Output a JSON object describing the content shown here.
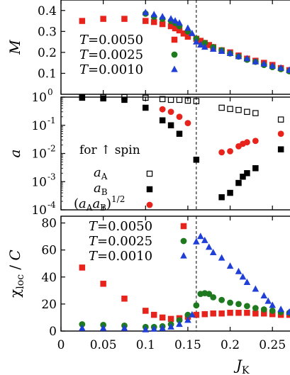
{
  "chart_data": [
    {
      "type": "scatter",
      "panel": "top",
      "ylabel": "M",
      "xlim": [
        0,
        0.28
      ],
      "ylim": [
        0,
        0.45
      ],
      "yticks": [
        {
          "value": 0.1,
          "label": "0.1"
        },
        {
          "value": 0.2,
          "label": "0.2"
        },
        {
          "value": 0.3,
          "label": "0.3"
        },
        {
          "value": 0.4,
          "label": "0.4"
        }
      ],
      "critical_x": 0.16,
      "legend_position": "lower-left",
      "series": [
        {
          "name": "T=0.0050",
          "color": "#e8231c",
          "marker": "square",
          "points": [
            [
              0.025,
              0.35
            ],
            [
              0.05,
              0.36
            ],
            [
              0.075,
              0.36
            ],
            [
              0.1,
              0.35
            ],
            [
              0.11,
              0.345
            ],
            [
              0.12,
              0.335
            ],
            [
              0.13,
              0.325
            ],
            [
              0.135,
              0.315
            ],
            [
              0.14,
              0.305
            ],
            [
              0.145,
              0.29
            ],
            [
              0.15,
              0.275
            ],
            [
              0.16,
              0.265
            ],
            [
              0.165,
              0.255
            ],
            [
              0.17,
              0.245
            ],
            [
              0.175,
              0.235
            ],
            [
              0.18,
              0.225
            ],
            [
              0.19,
              0.21
            ],
            [
              0.2,
              0.2
            ],
            [
              0.21,
              0.185
            ],
            [
              0.22,
              0.17
            ],
            [
              0.23,
              0.16
            ],
            [
              0.24,
              0.15
            ],
            [
              0.25,
              0.14
            ],
            [
              0.26,
              0.125
            ],
            [
              0.27,
              0.115
            ]
          ]
        },
        {
          "name": "T=0.0025",
          "color": "#1f7a1f",
          "marker": "circle",
          "points": [
            [
              0.1,
              0.385
            ],
            [
              0.11,
              0.37
            ],
            [
              0.12,
              0.36
            ],
            [
              0.13,
              0.35
            ],
            [
              0.135,
              0.34
            ],
            [
              0.14,
              0.325
            ],
            [
              0.15,
              0.3
            ],
            [
              0.16,
              0.265
            ],
            [
              0.17,
              0.245
            ],
            [
              0.18,
              0.225
            ],
            [
              0.19,
              0.21
            ],
            [
              0.2,
              0.195
            ],
            [
              0.21,
              0.18
            ],
            [
              0.22,
              0.165
            ],
            [
              0.23,
              0.155
            ],
            [
              0.24,
              0.14
            ],
            [
              0.25,
              0.13
            ],
            [
              0.26,
              0.12
            ],
            [
              0.27,
              0.11
            ],
            [
              0.28,
              0.1
            ]
          ]
        },
        {
          "name": "T=0.0010",
          "color": "#1f3fd6",
          "marker": "triangle",
          "points": [
            [
              0.1,
              0.39
            ],
            [
              0.11,
              0.38
            ],
            [
              0.12,
              0.37
            ],
            [
              0.13,
              0.36
            ],
            [
              0.135,
              0.35
            ],
            [
              0.14,
              0.34
            ],
            [
              0.15,
              0.315
            ],
            [
              0.155,
              0.29
            ],
            [
              0.16,
              0.25
            ],
            [
              0.165,
              0.235
            ],
            [
              0.17,
              0.225
            ],
            [
              0.18,
              0.215
            ],
            [
              0.19,
              0.205
            ],
            [
              0.2,
              0.195
            ],
            [
              0.21,
              0.18
            ],
            [
              0.22,
              0.17
            ],
            [
              0.23,
              0.155
            ],
            [
              0.24,
              0.145
            ],
            [
              0.25,
              0.135
            ],
            [
              0.26,
              0.125
            ],
            [
              0.27,
              0.115
            ],
            [
              0.28,
              0.105
            ]
          ]
        }
      ]
    },
    {
      "type": "scatter",
      "panel": "middle",
      "ylabel": "a",
      "yscale": "log",
      "xlim": [
        0,
        0.28
      ],
      "ylim": [
        0.0001,
        1
      ],
      "yticks": [
        {
          "value": 0.0001,
          "base": "10",
          "exp": "-4"
        },
        {
          "value": 0.001,
          "base": "10",
          "exp": "-3"
        },
        {
          "value": 0.01,
          "base": "10",
          "exp": "-2"
        },
        {
          "value": 0.1,
          "base": "10",
          "exp": "-1"
        },
        {
          "value": 1,
          "base": "10",
          "exp": "0"
        }
      ],
      "critical_x": 0.16,
      "legend_title": "for ↑ spin",
      "series": [
        {
          "name": "a_A",
          "color": "#000000",
          "marker": "open-square",
          "points": [
            [
              0.025,
              1.0
            ],
            [
              0.05,
              1.0
            ],
            [
              0.075,
              1.0
            ],
            [
              0.1,
              0.95
            ],
            [
              0.12,
              0.85
            ],
            [
              0.13,
              0.8
            ],
            [
              0.14,
              0.8
            ],
            [
              0.15,
              0.75
            ],
            [
              0.16,
              0.72
            ],
            [
              0.19,
              0.42
            ],
            [
              0.2,
              0.38
            ],
            [
              0.21,
              0.35
            ],
            [
              0.22,
              0.3
            ],
            [
              0.23,
              0.27
            ],
            [
              0.26,
              0.16
            ]
          ]
        },
        {
          "name": "a_B",
          "color": "#000000",
          "marker": "filled-square",
          "points": [
            [
              0.025,
              0.95
            ],
            [
              0.05,
              0.9
            ],
            [
              0.075,
              0.8
            ],
            [
              0.1,
              0.42
            ],
            [
              0.12,
              0.15
            ],
            [
              0.13,
              0.1
            ],
            [
              0.14,
              0.05
            ],
            [
              0.16,
              0.006
            ],
            [
              0.19,
              0.00028
            ],
            [
              0.2,
              0.0004
            ],
            [
              0.21,
              0.0009
            ],
            [
              0.215,
              0.0015
            ],
            [
              0.22,
              0.002
            ],
            [
              0.23,
              0.003
            ],
            [
              0.26,
              0.014
            ]
          ]
        },
        {
          "name": "(a_A a_B)^1/2",
          "color": "#e8231c",
          "marker": "circle",
          "points": [
            [
              0.12,
              0.37
            ],
            [
              0.13,
              0.3
            ],
            [
              0.14,
              0.2
            ],
            [
              0.15,
              0.12
            ],
            [
              0.19,
              0.011
            ],
            [
              0.2,
              0.012
            ],
            [
              0.21,
              0.018
            ],
            [
              0.215,
              0.022
            ],
            [
              0.22,
              0.025
            ],
            [
              0.23,
              0.028
            ],
            [
              0.26,
              0.05
            ]
          ]
        }
      ]
    },
    {
      "type": "scatter",
      "panel": "bottom",
      "ylabel": "χloc / C",
      "xlabel": "JK",
      "xlim": [
        0,
        0.28
      ],
      "ylim": [
        0,
        85
      ],
      "xticks": [
        {
          "value": 0,
          "label": "0"
        },
        {
          "value": 0.05,
          "label": "0.05"
        },
        {
          "value": 0.1,
          "label": "0.1"
        },
        {
          "value": 0.15,
          "label": "0.15"
        },
        {
          "value": 0.2,
          "label": "0.2"
        },
        {
          "value": 0.25,
          "label": "0.25"
        }
      ],
      "yticks": [
        {
          "value": 0,
          "label": "0"
        },
        {
          "value": 20,
          "label": "20"
        },
        {
          "value": 40,
          "label": "40"
        },
        {
          "value": 60,
          "label": "60"
        },
        {
          "value": 80,
          "label": "80"
        }
      ],
      "critical_x": 0.16,
      "legend_position": "upper-left",
      "series": [
        {
          "name": "T=0.0050",
          "color": "#e8231c",
          "marker": "square",
          "points": [
            [
              0.025,
              47
            ],
            [
              0.05,
              35
            ],
            [
              0.075,
              24
            ],
            [
              0.1,
              15
            ],
            [
              0.11,
              12
            ],
            [
              0.12,
              10
            ],
            [
              0.13,
              9
            ],
            [
              0.14,
              9.5
            ],
            [
              0.15,
              10.5
            ],
            [
              0.16,
              12
            ],
            [
              0.17,
              12.5
            ],
            [
              0.18,
              13
            ],
            [
              0.19,
              13
            ],
            [
              0.2,
              13.5
            ],
            [
              0.21,
              13.5
            ],
            [
              0.22,
              13.5
            ],
            [
              0.23,
              13
            ],
            [
              0.24,
              13
            ],
            [
              0.25,
              12.5
            ],
            [
              0.26,
              12
            ],
            [
              0.27,
              12
            ],
            [
              0.28,
              11.5
            ]
          ]
        },
        {
          "name": "T=0.0025",
          "color": "#1f7a1f",
          "marker": "circle",
          "points": [
            [
              0.025,
              5
            ],
            [
              0.05,
              4.5
            ],
            [
              0.075,
              4
            ],
            [
              0.1,
              3
            ],
            [
              0.11,
              3
            ],
            [
              0.12,
              3.5
            ],
            [
              0.13,
              5
            ],
            [
              0.14,
              8
            ],
            [
              0.15,
              12
            ],
            [
              0.16,
              19
            ],
            [
              0.165,
              27.5
            ],
            [
              0.17,
              28
            ],
            [
              0.175,
              27.5
            ],
            [
              0.18,
              25
            ],
            [
              0.19,
              23
            ],
            [
              0.2,
              21
            ],
            [
              0.21,
              20
            ],
            [
              0.22,
              18.5
            ],
            [
              0.23,
              17
            ],
            [
              0.24,
              16
            ],
            [
              0.25,
              15
            ],
            [
              0.26,
              14
            ],
            [
              0.27,
              13.5
            ],
            [
              0.28,
              13
            ]
          ]
        },
        {
          "name": "T=0.0010",
          "color": "#1f3fd6",
          "marker": "triangle",
          "points": [
            [
              0.025,
              2
            ],
            [
              0.05,
              2
            ],
            [
              0.075,
              2
            ],
            [
              0.1,
              1
            ],
            [
              0.11,
              1.5
            ],
            [
              0.12,
              2
            ],
            [
              0.13,
              3
            ],
            [
              0.14,
              5
            ],
            [
              0.15,
              8
            ],
            [
              0.155,
              12
            ],
            [
              0.16,
              66
            ],
            [
              0.165,
              70
            ],
            [
              0.17,
              67
            ],
            [
              0.175,
              62
            ],
            [
              0.18,
              58
            ],
            [
              0.19,
              54
            ],
            [
              0.2,
              48
            ],
            [
              0.21,
              44
            ],
            [
              0.215,
              40
            ],
            [
              0.22,
              36
            ],
            [
              0.23,
              31
            ],
            [
              0.24,
              26
            ],
            [
              0.245,
              22
            ],
            [
              0.25,
              19
            ],
            [
              0.26,
              16
            ],
            [
              0.27,
              14
            ],
            [
              0.28,
              12
            ]
          ]
        }
      ]
    }
  ]
}
